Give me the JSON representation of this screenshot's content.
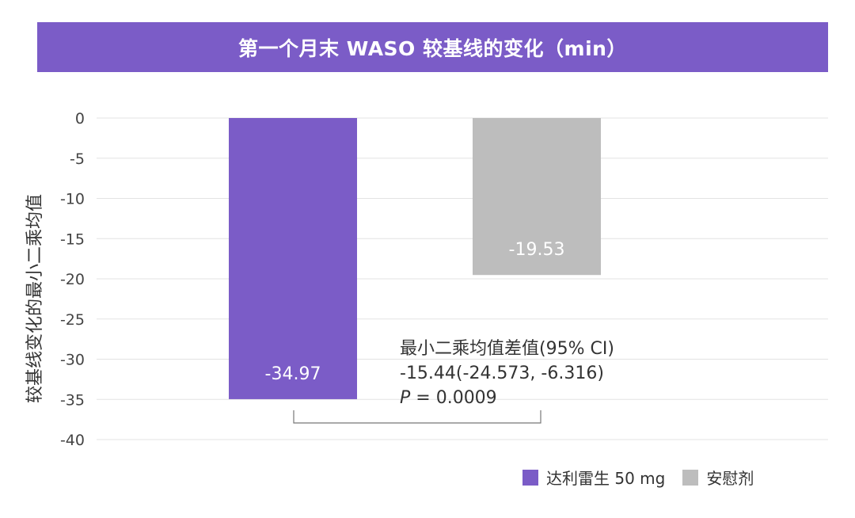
{
  "header": {
    "title": "第一个月末 WASO 较基线的变化（min）"
  },
  "stats": {
    "line1": "最小二乘均值差值(95% CI)",
    "line2": "-15.44(-24.573, -6.316)",
    "p_label": "P",
    "p_value": " = 0.0009"
  },
  "legend": {
    "items": [
      {
        "label": "达利雷生 50 mg",
        "color": "#7b5cc7"
      },
      {
        "label": "安慰剂",
        "color": "#bdbdbd"
      }
    ]
  },
  "chart_data": {
    "type": "bar",
    "categories": [
      "达利雷生 50 mg",
      "安慰剂"
    ],
    "series": [
      {
        "name": "达利雷生 50 mg",
        "values": [
          -34.97,
          null
        ],
        "color": "#7b5cc7"
      },
      {
        "name": "安慰剂",
        "values": [
          null,
          -19.53
        ],
        "color": "#bdbdbd"
      }
    ],
    "values": [
      -34.97,
      -19.53
    ],
    "data_labels": [
      "-34.97",
      "-19.53"
    ],
    "title": "第一个月末 WASO 较基线的变化（min）",
    "xlabel": "",
    "ylabel": "较基线变化的最小二乘均值",
    "ylim": [
      -40,
      0
    ],
    "yticks": [
      0,
      -5,
      -10,
      -15,
      -20,
      -25,
      -30,
      -35,
      -40
    ],
    "grid": true,
    "legend_position": "bottom-right",
    "annotation": "最小二乘均值差值(95% CI) -15.44(-24.573, -6.316) P = 0.0009"
  }
}
